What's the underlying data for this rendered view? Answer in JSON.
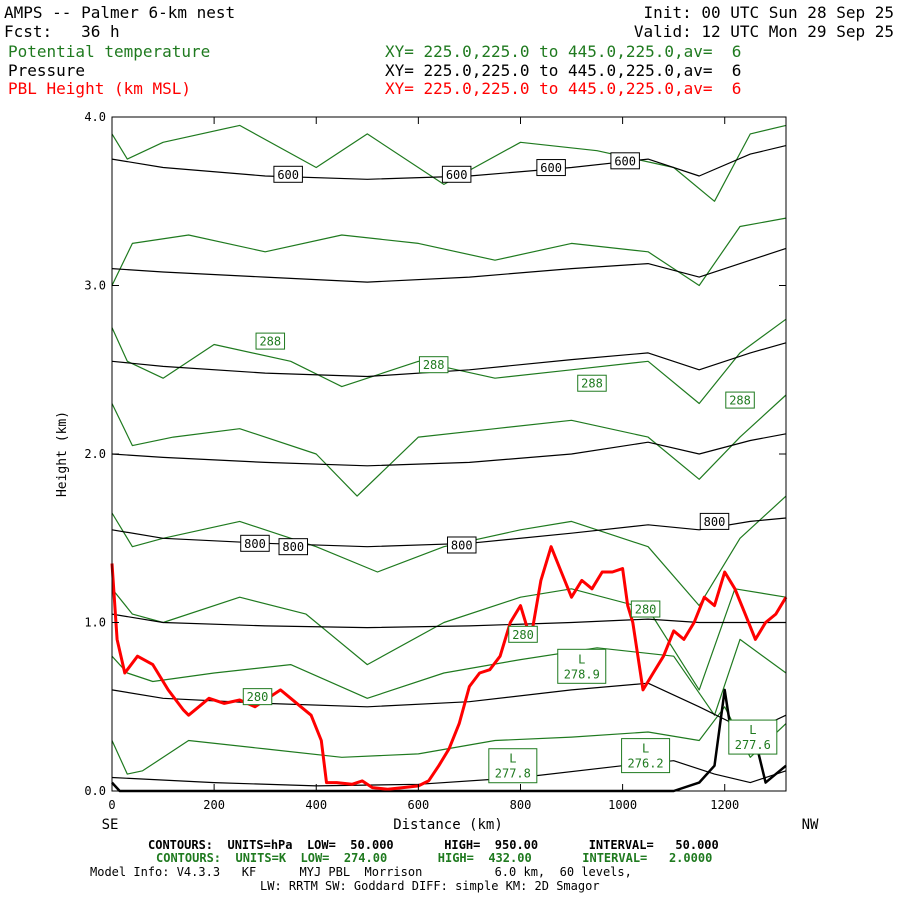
{
  "header": {
    "title": "AMPS -- Palmer 6-km nest",
    "fcst": "Fcst:   36 h",
    "init": "Init: 00 UTC Sun 28 Sep 25",
    "valid": "Valid: 12 UTC Mon 29 Sep 25",
    "fields": [
      {
        "name": "Potential temperature",
        "xy": "XY= 225.0,225.0 to 445.0,225.0,av=  6",
        "color": "#1f7a1f"
      },
      {
        "name": "Pressure",
        "xy": "XY= 225.0,225.0 to 445.0,225.0,av=  6",
        "color": "#000000"
      },
      {
        "name": "PBL Height (km MSL)",
        "xy": "XY= 225.0,225.0 to 445.0,225.0,av=  6",
        "color": "#ff0000"
      }
    ]
  },
  "footer": {
    "contours_p": "CONTOURS:  UNITS=hPa  LOW=  50.000       HIGH=  950.00       INTERVAL=   50.000",
    "contours_t": "CONTOURS:  UNITS=K  LOW=  274.00       HIGH=  432.00       INTERVAL=   2.0000",
    "model1": "Model Info: V4.3.3   KF      MYJ PBL  Morrison          6.0 km,  60 levels,",
    "model2": "LW: RRTM SW: Goddard DIFF: simple KM: 2D Smagor"
  },
  "chart_data": {
    "type": "line",
    "xlabel": "Distance (km)",
    "ylabel": "Height (km)",
    "x_left_label": "SE",
    "x_right_label": "NW",
    "xlim": [
      0,
      1320
    ],
    "ylim": [
      0,
      4.0
    ],
    "x_ticks": [
      0,
      200,
      400,
      600,
      800,
      1000,
      1200
    ],
    "y_ticks": [
      "0.0",
      "1.0",
      "2.0",
      "3.0",
      "4.0"
    ],
    "colors": {
      "pressure": "#000000",
      "theta": "#1f7a1f",
      "pbl": "#ff0000"
    },
    "pressure_contours": [
      {
        "x": [
          0,
          200,
          400,
          600,
          800,
          1000,
          1100,
          1180,
          1250,
          1320
        ],
        "y": [
          0.08,
          0.05,
          0.03,
          0.04,
          0.08,
          0.15,
          0.18,
          0.1,
          0.05,
          0.12
        ]
      },
      {
        "x": [
          0,
          100,
          300,
          500,
          700,
          900,
          1050,
          1150,
          1250,
          1320
        ],
        "y": [
          0.6,
          0.55,
          0.52,
          0.5,
          0.53,
          0.6,
          0.64,
          0.5,
          0.35,
          0.45
        ]
      },
      {
        "x": [
          0,
          100,
          300,
          500,
          700,
          900,
          1050,
          1150,
          1250,
          1320
        ],
        "y": [
          1.05,
          1.0,
          0.98,
          0.97,
          0.98,
          1.0,
          1.02,
          1.0,
          1.0,
          1.0
        ]
      },
      {
        "x": [
          0,
          100,
          300,
          500,
          700,
          900,
          1050,
          1150,
          1250,
          1320
        ],
        "y": [
          1.55,
          1.5,
          1.47,
          1.45,
          1.47,
          1.53,
          1.58,
          1.55,
          1.6,
          1.62
        ]
      },
      {
        "x": [
          0,
          100,
          300,
          500,
          700,
          900,
          1050,
          1150,
          1250,
          1320
        ],
        "y": [
          2.0,
          1.98,
          1.95,
          1.93,
          1.95,
          2.0,
          2.07,
          2.0,
          2.08,
          2.12
        ]
      },
      {
        "x": [
          0,
          100,
          300,
          500,
          700,
          900,
          1050,
          1150,
          1250,
          1320
        ],
        "y": [
          2.55,
          2.52,
          2.48,
          2.46,
          2.5,
          2.56,
          2.6,
          2.5,
          2.6,
          2.66
        ]
      },
      {
        "x": [
          0,
          100,
          300,
          500,
          700,
          900,
          1050,
          1150,
          1250,
          1320
        ],
        "y": [
          3.1,
          3.08,
          3.05,
          3.02,
          3.05,
          3.1,
          3.13,
          3.05,
          3.15,
          3.22
        ]
      },
      {
        "x": [
          0,
          100,
          300,
          500,
          700,
          900,
          1050,
          1150,
          1250,
          1320
        ],
        "y": [
          3.75,
          3.7,
          3.65,
          3.63,
          3.65,
          3.7,
          3.75,
          3.65,
          3.78,
          3.83
        ]
      }
    ],
    "pressure_labels": [
      {
        "text": "600",
        "x": 345,
        "y": 3.66
      },
      {
        "text": "600",
        "x": 675,
        "y": 3.66
      },
      {
        "text": "600",
        "x": 860,
        "y": 3.7
      },
      {
        "text": "600",
        "x": 1005,
        "y": 3.74
      },
      {
        "text": "800",
        "x": 280,
        "y": 1.47
      },
      {
        "text": "800",
        "x": 355,
        "y": 1.45
      },
      {
        "text": "800",
        "x": 685,
        "y": 1.46
      },
      {
        "text": "800",
        "x": 1180,
        "y": 1.6
      }
    ],
    "theta_contours": [
      {
        "x": [
          0,
          30,
          60,
          150,
          300,
          450,
          600,
          750,
          900,
          1050,
          1150,
          1200,
          1250,
          1320
        ],
        "y": [
          0.3,
          0.1,
          0.12,
          0.3,
          0.25,
          0.2,
          0.22,
          0.3,
          0.32,
          0.35,
          0.3,
          0.5,
          0.2,
          0.4
        ]
      },
      {
        "x": [
          0,
          30,
          80,
          200,
          350,
          500,
          650,
          800,
          950,
          1100,
          1180,
          1230,
          1320
        ],
        "y": [
          0.8,
          0.7,
          0.65,
          0.7,
          0.75,
          0.55,
          0.7,
          0.78,
          0.85,
          0.8,
          0.45,
          0.9,
          0.7
        ]
      },
      {
        "x": [
          0,
          40,
          100,
          250,
          380,
          500,
          650,
          800,
          900,
          1050,
          1150,
          1220,
          1320
        ],
        "y": [
          1.2,
          1.05,
          1.0,
          1.15,
          1.05,
          0.75,
          1.0,
          1.15,
          1.2,
          1.08,
          0.6,
          1.2,
          1.15
        ]
      },
      {
        "x": [
          0,
          40,
          100,
          250,
          400,
          520,
          650,
          800,
          900,
          1050,
          1150,
          1230,
          1320
        ],
        "y": [
          1.65,
          1.45,
          1.5,
          1.6,
          1.45,
          1.3,
          1.45,
          1.55,
          1.6,
          1.45,
          1.1,
          1.5,
          1.75
        ]
      },
      {
        "x": [
          0,
          40,
          120,
          250,
          400,
          480,
          600,
          750,
          900,
          1050,
          1150,
          1230,
          1320
        ],
        "y": [
          2.3,
          2.05,
          2.1,
          2.15,
          2.0,
          1.75,
          2.1,
          2.15,
          2.2,
          2.1,
          1.85,
          2.1,
          2.35
        ]
      },
      {
        "x": [
          0,
          30,
          100,
          200,
          350,
          450,
          600,
          750,
          900,
          1050,
          1150,
          1230,
          1320
        ],
        "y": [
          2.75,
          2.55,
          2.45,
          2.65,
          2.55,
          2.4,
          2.55,
          2.45,
          2.5,
          2.55,
          2.3,
          2.6,
          2.8
        ]
      },
      {
        "x": [
          0,
          40,
          150,
          300,
          450,
          600,
          750,
          900,
          1050,
          1150,
          1230,
          1320
        ],
        "y": [
          3.0,
          3.25,
          3.3,
          3.2,
          3.3,
          3.25,
          3.15,
          3.25,
          3.2,
          3.0,
          3.35,
          3.4
        ]
      },
      {
        "x": [
          0,
          30,
          100,
          250,
          400,
          500,
          650,
          800,
          950,
          1100,
          1180,
          1250,
          1320
        ],
        "y": [
          3.9,
          3.75,
          3.85,
          3.95,
          3.7,
          3.9,
          3.6,
          3.85,
          3.8,
          3.7,
          3.5,
          3.9,
          3.95
        ]
      }
    ],
    "theta_labels": [
      {
        "text": "288",
        "x": 310,
        "y": 2.67
      },
      {
        "text": "288",
        "x": 630,
        "y": 2.53
      },
      {
        "text": "288",
        "x": 940,
        "y": 2.42
      },
      {
        "text": "288",
        "x": 1230,
        "y": 2.32
      },
      {
        "text": "280",
        "x": 285,
        "y": 0.56
      },
      {
        "text": "280",
        "x": 805,
        "y": 0.93
      },
      {
        "text": "280",
        "x": 1045,
        "y": 1.08
      }
    ],
    "lows": [
      {
        "label": "L",
        "value": "278.9",
        "x": 920,
        "y": 0.74
      },
      {
        "label": "L",
        "value": "277.8",
        "x": 785,
        "y": 0.15
      },
      {
        "label": "L",
        "value": "276.2",
        "x": 1045,
        "y": 0.21
      },
      {
        "label": "L",
        "value": "277.6",
        "x": 1255,
        "y": 0.32
      }
    ],
    "pbl_height": {
      "x": [
        0,
        10,
        25,
        50,
        80,
        110,
        140,
        150,
        170,
        190,
        220,
        250,
        280,
        310,
        330,
        350,
        370,
        390,
        410,
        420,
        440,
        470,
        490,
        510,
        540,
        570,
        600,
        620,
        640,
        660,
        680,
        700,
        720,
        740,
        760,
        780,
        800,
        820,
        840,
        860,
        880,
        900,
        920,
        940,
        960,
        980,
        1000,
        1010,
        1020,
        1040,
        1060,
        1080,
        1100,
        1120,
        1140,
        1160,
        1180,
        1200,
        1220,
        1240,
        1260,
        1280,
        1300,
        1320
      ],
      "y": [
        1.35,
        0.9,
        0.7,
        0.8,
        0.75,
        0.6,
        0.48,
        0.45,
        0.5,
        0.55,
        0.52,
        0.54,
        0.5,
        0.56,
        0.6,
        0.55,
        0.5,
        0.45,
        0.3,
        0.05,
        0.05,
        0.04,
        0.06,
        0.02,
        0.01,
        0.02,
        0.03,
        0.06,
        0.15,
        0.25,
        0.4,
        0.62,
        0.7,
        0.72,
        0.8,
        1.0,
        1.1,
        0.9,
        1.25,
        1.45,
        1.3,
        1.15,
        1.25,
        1.2,
        1.3,
        1.3,
        1.32,
        1.1,
        1.0,
        0.6,
        0.7,
        0.8,
        0.95,
        0.9,
        1.0,
        1.15,
        1.1,
        1.3,
        1.2,
        1.05,
        0.9,
        1.0,
        1.05,
        1.15
      ]
    },
    "terrain": {
      "x": [
        0,
        15,
        30,
        60,
        1100,
        1150,
        1180,
        1200,
        1215,
        1225,
        1240,
        1260,
        1280,
        1300,
        1320
      ],
      "y": [
        0.05,
        0.0,
        0.0,
        0.0,
        0.0,
        0.05,
        0.15,
        0.6,
        0.3,
        0.35,
        0.4,
        0.3,
        0.05,
        0.1,
        0.15
      ]
    }
  }
}
